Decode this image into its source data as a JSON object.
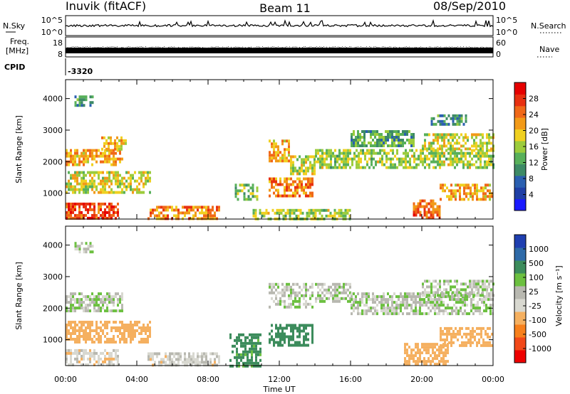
{
  "header": {
    "station": "Inuvik (fitACF)",
    "beam": "Beam 11",
    "date": "08/Sep/2010"
  },
  "top_panels": {
    "nsky_label": "N.Sky",
    "nsky_ticks": [
      "10^5",
      "10^0"
    ],
    "nsearch_label": "N.Search",
    "nsearch_ticks": [
      "10^5",
      "10^0"
    ],
    "freq_label_line1": "Freq.",
    "freq_label_line2": "[MHz]",
    "freq_ticks": [
      "18",
      "8"
    ],
    "nave_label": "Nave",
    "nave_ticks": [
      "60",
      "0"
    ],
    "cpid_label": "CPID",
    "cpid_value": "-3320"
  },
  "colors": {
    "power_scale": [
      "#1a1aff",
      "#1f3fa6",
      "#2a5fb0",
      "#3d8a66",
      "#58b05a",
      "#9ccc3c",
      "#f0d020",
      "#f29a18",
      "#f06818",
      "#e83010",
      "#e60000"
    ],
    "velocity_scale": [
      "#ee0000",
      "#f24818",
      "#f7801c",
      "#f5b060",
      "#d8d8d0",
      "#b8b8b0",
      "#6cc040",
      "#3c8c5c",
      "#2e6aa8",
      "#1f3fb0"
    ],
    "trace": "#000000"
  },
  "power_colorbar": {
    "label": "Power [dB]",
    "tick_labels": [
      "28",
      "24",
      "20",
      "16",
      "12",
      "8",
      "4"
    ]
  },
  "velocity_colorbar": {
    "label": "Velocity [m s⁻¹]",
    "tick_labels": [
      "1000",
      "500",
      "100",
      "25",
      "-25",
      "-100",
      "-500",
      "-1000"
    ]
  },
  "chart_data": [
    {
      "type": "heatmap",
      "name": "power",
      "ylabel": "Slant Range [km]",
      "xlabel": "",
      "ylim": [
        180,
        4600
      ],
      "y_ticks": [
        "1000",
        "2000",
        "3000",
        "4000"
      ],
      "y_tick_values": [
        1000,
        2000,
        3000,
        4000
      ],
      "xlim_hours": [
        0,
        24
      ],
      "x_tick_labels": [
        "00:00",
        "04:00",
        "08:00",
        "12:00",
        "16:00",
        "20:00",
        "00:00"
      ],
      "colorbar_range_db": [
        0,
        32
      ],
      "echo_regions": [
        {
          "t": [
            0.0,
            3.2
          ],
          "r": [
            1900,
            2400
          ],
          "db": 22
        },
        {
          "t": [
            2.0,
            3.4
          ],
          "r": [
            2400,
            2800
          ],
          "db": 20
        },
        {
          "t": [
            0.0,
            4.8
          ],
          "r": [
            1000,
            1700
          ],
          "db": 18
        },
        {
          "t": [
            0.0,
            3.0
          ],
          "r": [
            180,
            700
          ],
          "db": 28
        },
        {
          "t": [
            4.6,
            8.6
          ],
          "r": [
            180,
            600
          ],
          "db": 24
        },
        {
          "t": [
            0.5,
            1.5
          ],
          "r": [
            3800,
            4100
          ],
          "db": 10
        },
        {
          "t": [
            9.5,
            10.8
          ],
          "r": [
            800,
            1300
          ],
          "db": 14
        },
        {
          "t": [
            11.4,
            13.8
          ],
          "r": [
            900,
            1500
          ],
          "db": 24
        },
        {
          "t": [
            11.4,
            12.6
          ],
          "r": [
            2000,
            2700
          ],
          "db": 22
        },
        {
          "t": [
            12.6,
            14.0
          ],
          "r": [
            1600,
            2200
          ],
          "db": 18
        },
        {
          "t": [
            10.5,
            16.0
          ],
          "r": [
            180,
            500
          ],
          "db": 16
        },
        {
          "t": [
            16.0,
            19.5
          ],
          "r": [
            2500,
            3000
          ],
          "db": 12
        },
        {
          "t": [
            14.0,
            24.0
          ],
          "r": [
            1800,
            2400
          ],
          "db": 16
        },
        {
          "t": [
            19.5,
            21.0
          ],
          "r": [
            180,
            800
          ],
          "db": 26
        },
        {
          "t": [
            21.0,
            24.0
          ],
          "r": [
            800,
            1300
          ],
          "db": 22
        },
        {
          "t": [
            20.0,
            24.0
          ],
          "r": [
            2400,
            2900
          ],
          "db": 18
        },
        {
          "t": [
            20.5,
            22.5
          ],
          "r": [
            3200,
            3500
          ],
          "db": 10
        }
      ]
    },
    {
      "type": "heatmap",
      "name": "velocity",
      "ylabel": "Slant Range [km]",
      "xlabel": "Time UT",
      "ylim": [
        180,
        4600
      ],
      "y_ticks": [
        "1000",
        "2000",
        "3000",
        "4000"
      ],
      "y_tick_values": [
        1000,
        2000,
        3000,
        4000
      ],
      "xlim_hours": [
        0,
        24
      ],
      "x_tick_labels": [
        "00:00",
        "04:00",
        "08:00",
        "12:00",
        "16:00",
        "20:00",
        "00:00"
      ],
      "colorbar_levels": [
        -1000,
        -500,
        -100,
        -25,
        25,
        100,
        500,
        1000
      ],
      "echo_regions": [
        {
          "t": [
            0.0,
            3.2
          ],
          "r": [
            1900,
            2500
          ],
          "v": 10
        },
        {
          "t": [
            0.0,
            4.8
          ],
          "r": [
            900,
            1600
          ],
          "v": -200
        },
        {
          "t": [
            0.0,
            3.0
          ],
          "r": [
            180,
            700
          ],
          "v": -60
        },
        {
          "t": [
            4.6,
            8.6
          ],
          "r": [
            180,
            600
          ],
          "v": -50
        },
        {
          "t": [
            0.5,
            1.5
          ],
          "r": [
            3800,
            4100
          ],
          "v": 5
        },
        {
          "t": [
            9.2,
            11.0
          ],
          "r": [
            180,
            1200
          ],
          "v": 150
        },
        {
          "t": [
            11.4,
            13.8
          ],
          "r": [
            800,
            1500
          ],
          "v": 200
        },
        {
          "t": [
            11.4,
            13.8
          ],
          "r": [
            2000,
            2800
          ],
          "v": 0
        },
        {
          "t": [
            14.0,
            16.0
          ],
          "r": [
            2200,
            2800
          ],
          "v": 5
        },
        {
          "t": [
            16.0,
            24.0
          ],
          "r": [
            1800,
            2500
          ],
          "v": 0
        },
        {
          "t": [
            19.0,
            21.5
          ],
          "r": [
            180,
            900
          ],
          "v": -300
        },
        {
          "t": [
            21.0,
            24.0
          ],
          "r": [
            800,
            1400
          ],
          "v": -400
        },
        {
          "t": [
            20.0,
            24.0
          ],
          "r": [
            2400,
            2900
          ],
          "v": 0
        }
      ]
    }
  ]
}
